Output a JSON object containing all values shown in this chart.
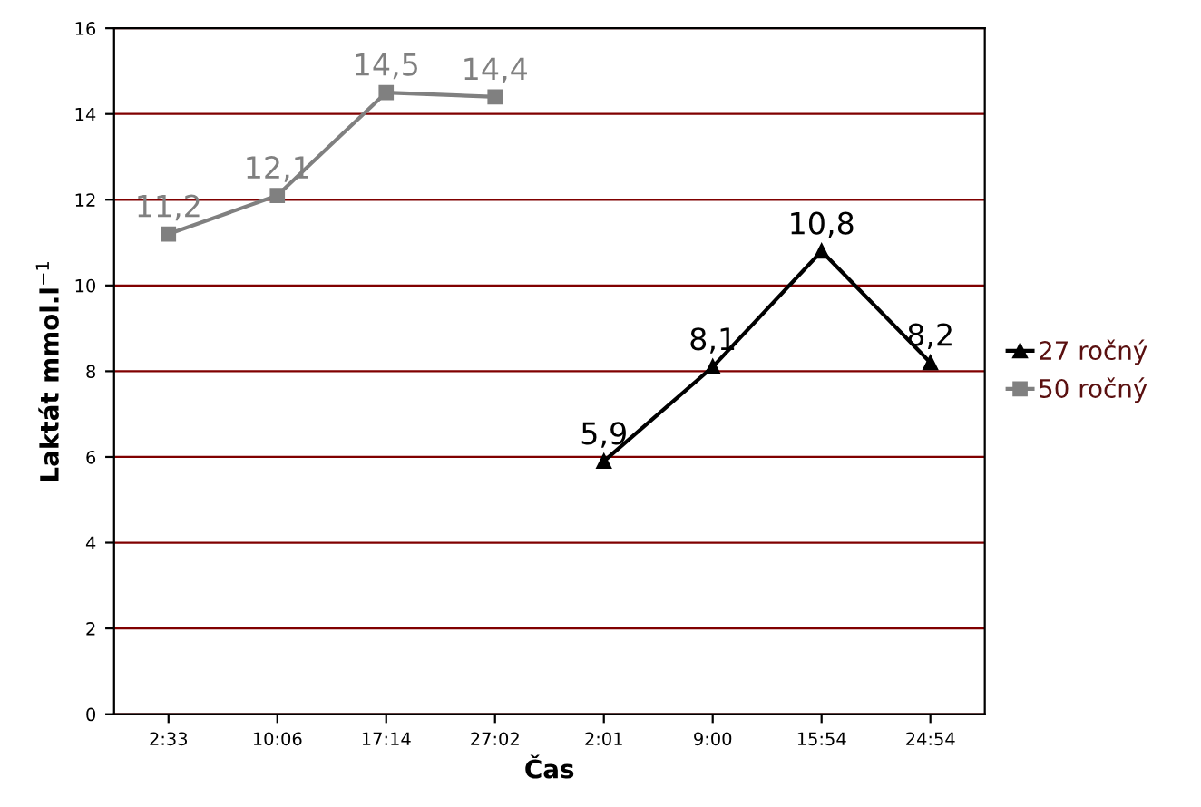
{
  "chart_data": {
    "type": "line",
    "xlabel": "Čas",
    "ylabel": "Laktát mmol.l$^{−1}$",
    "categories": [
      "2:33",
      "10:06",
      "17:14",
      "27:02",
      "2:01",
      "9:00",
      "15:54",
      "24:54"
    ],
    "series": [
      {
        "name": "27 ročný",
        "color": "#000000",
        "marker": "triangle",
        "values": [
          null,
          null,
          null,
          null,
          5.9,
          8.1,
          10.8,
          8.2
        ],
        "value_labels": [
          null,
          null,
          null,
          null,
          "5,9",
          "8,1",
          "10,8",
          "8,2"
        ]
      },
      {
        "name": "50 ročný",
        "color": "#808080",
        "marker": "square",
        "values": [
          11.2,
          12.1,
          14.5,
          14.4,
          null,
          null,
          null,
          null
        ],
        "value_labels": [
          "11,2",
          "12,1",
          "14,5",
          "14,4",
          null,
          null,
          null,
          null
        ]
      }
    ],
    "ylim": [
      0,
      16
    ],
    "yticks": [
      0,
      2,
      4,
      6,
      8,
      10,
      12,
      14,
      16
    ],
    "grid": "y",
    "legend": "right"
  }
}
